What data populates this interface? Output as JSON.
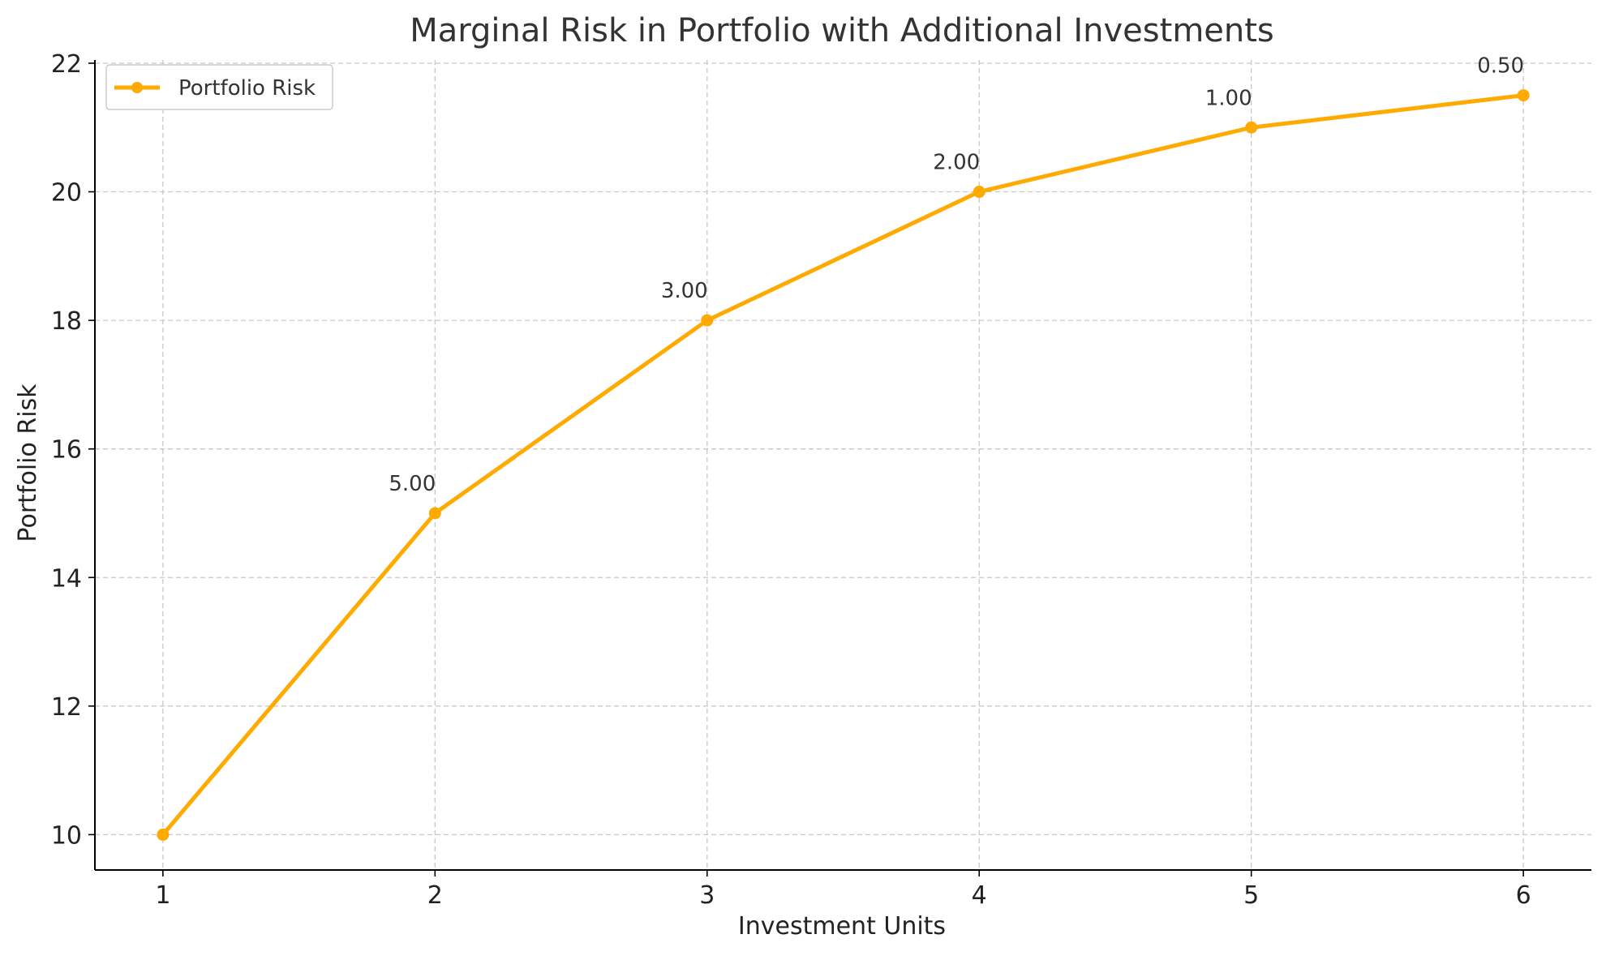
{
  "chart_data": {
    "type": "line",
    "title": "Marginal Risk in Portfolio with Additional Investments",
    "xlabel": "Investment Units",
    "ylabel": "Portfolio Risk",
    "x": [
      1,
      2,
      3,
      4,
      5,
      6
    ],
    "series": [
      {
        "name": "Portfolio Risk",
        "values": [
          10,
          15,
          18,
          20,
          21,
          21.5
        ],
        "color": "#FFAA00",
        "marker": "circle"
      }
    ],
    "annotations": [
      {
        "x": 2,
        "y": 15,
        "text": "5.00"
      },
      {
        "x": 3,
        "y": 18,
        "text": "3.00"
      },
      {
        "x": 4,
        "y": 20,
        "text": "2.00"
      },
      {
        "x": 5,
        "y": 21,
        "text": "1.00"
      },
      {
        "x": 6,
        "y": 21.5,
        "text": "0.50"
      }
    ],
    "xticks": [
      1,
      2,
      3,
      4,
      5,
      6
    ],
    "yticks": [
      10,
      12,
      14,
      16,
      18,
      20,
      22
    ],
    "xlim": [
      0.75,
      6.25
    ],
    "ylim": [
      9.45,
      22.05
    ],
    "grid": true,
    "legend_position": "top-left"
  }
}
